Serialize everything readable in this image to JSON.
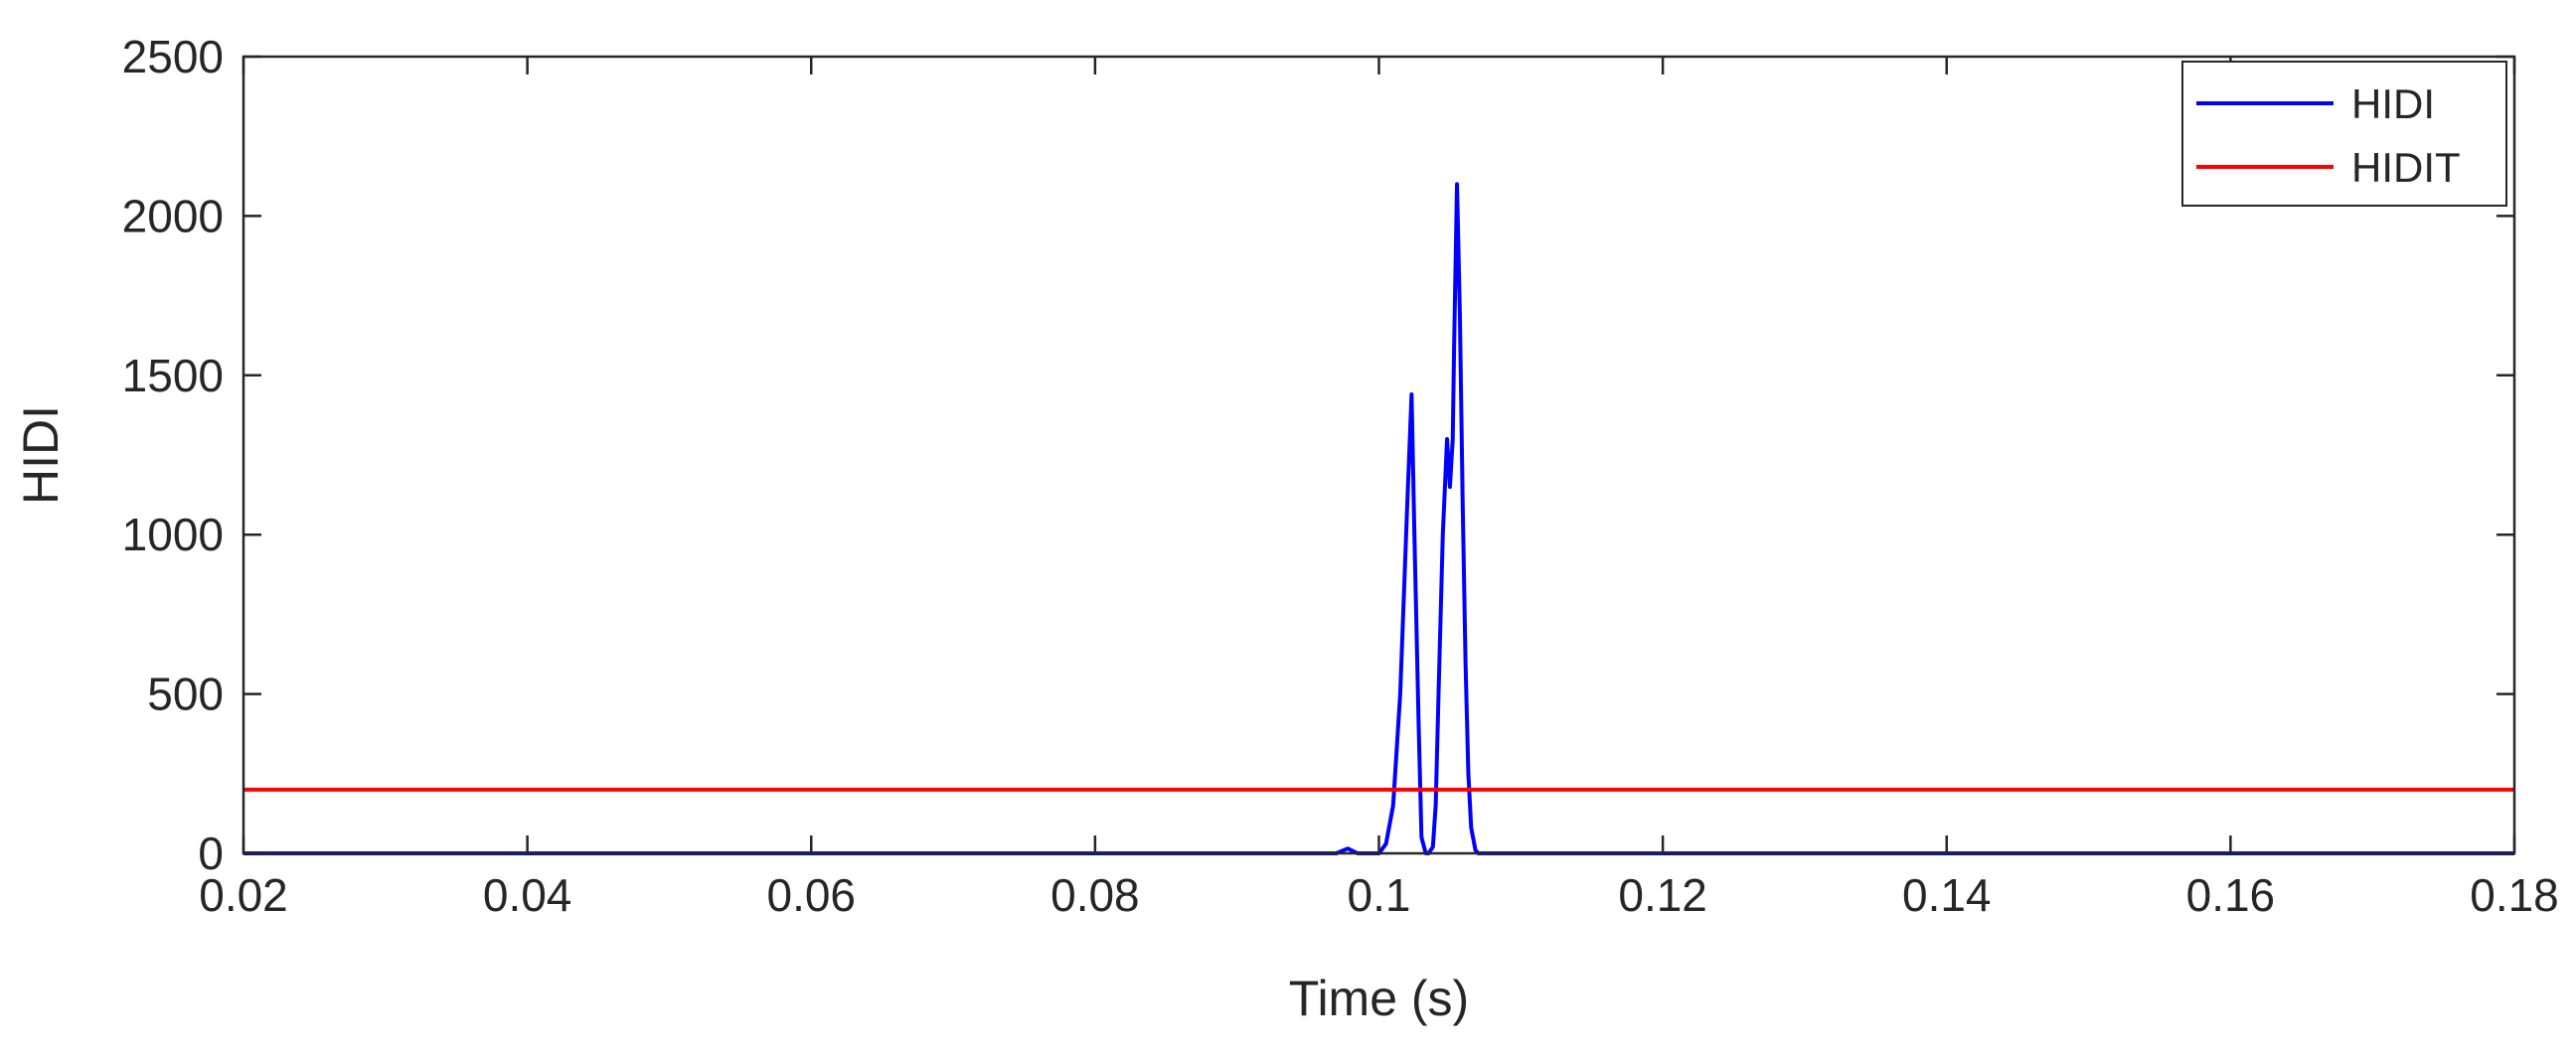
{
  "chart_data": {
    "type": "line",
    "title": "",
    "xlabel": "Time (s)",
    "ylabel": "HIDI",
    "xlim": [
      0.02,
      0.18
    ],
    "ylim": [
      0,
      2500
    ],
    "xticks": [
      0.02,
      0.04,
      0.06,
      0.08,
      0.1,
      0.12,
      0.14,
      0.16,
      0.18
    ],
    "xtick_labels": [
      "0.02",
      "0.04",
      "0.06",
      "0.08",
      "0.1",
      "0.12",
      "0.14",
      "0.16",
      "0.18"
    ],
    "yticks": [
      0,
      500,
      1000,
      1500,
      2000,
      2500
    ],
    "ytick_labels": [
      "0",
      "500",
      "1000",
      "1500",
      "2000",
      "2500"
    ],
    "grid": false,
    "legend_position": "top-right",
    "series": [
      {
        "name": "HIDI",
        "color": "#0000ff",
        "x": [
          0.02,
          0.097,
          0.0978,
          0.0985,
          0.1,
          0.1005,
          0.101,
          0.1015,
          0.102,
          0.1023,
          0.1025,
          0.1028,
          0.103,
          0.1033,
          0.1035,
          0.1038,
          0.104,
          0.1042,
          0.1045,
          0.1048,
          0.105,
          0.1052,
          0.1053,
          0.1055,
          0.1057,
          0.1059,
          0.1061,
          0.1063,
          0.1065,
          0.1068,
          0.107,
          0.18
        ],
        "values": [
          0,
          0,
          15,
          0,
          0,
          30,
          150,
          500,
          1100,
          1440,
          1000,
          400,
          50,
          0,
          0,
          20,
          150,
          500,
          1000,
          1300,
          1150,
          1300,
          1600,
          2100,
          1700,
          1100,
          600,
          250,
          80,
          10,
          0,
          0
        ]
      },
      {
        "name": "HIDIT",
        "color": "#ff0000",
        "x": [
          0.02,
          0.18
        ],
        "values": [
          200,
          200
        ]
      }
    ]
  }
}
